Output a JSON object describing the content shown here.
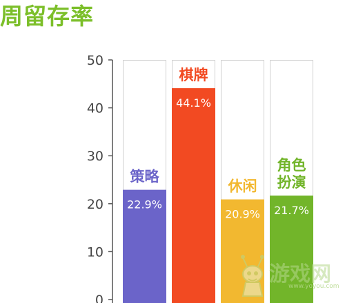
{
  "chart_data": {
    "type": "bar",
    "title": "周留存率",
    "categories": [
      "策略",
      "棋牌",
      "休闲",
      "角色扮演"
    ],
    "category_lines": [
      [
        "策略"
      ],
      [
        "棋牌"
      ],
      [
        "休闲"
      ],
      [
        "角色",
        "扮演"
      ]
    ],
    "values": [
      22.9,
      44.1,
      20.9,
      21.7
    ],
    "value_labels": [
      "22.9%",
      "44.1%",
      "20.9%",
      "21.7%"
    ],
    "bar_max": 50,
    "colors": [
      "#6b64c9",
      "#f24a22",
      "#f2b830",
      "#72b52a"
    ],
    "ylim": [
      0,
      50
    ],
    "yticks": [
      0,
      10,
      20,
      30,
      40,
      50
    ],
    "grid": false,
    "legend": "none"
  },
  "watermark": {
    "text_cn": "游戏网",
    "text_en": "www.yoyou.com"
  }
}
